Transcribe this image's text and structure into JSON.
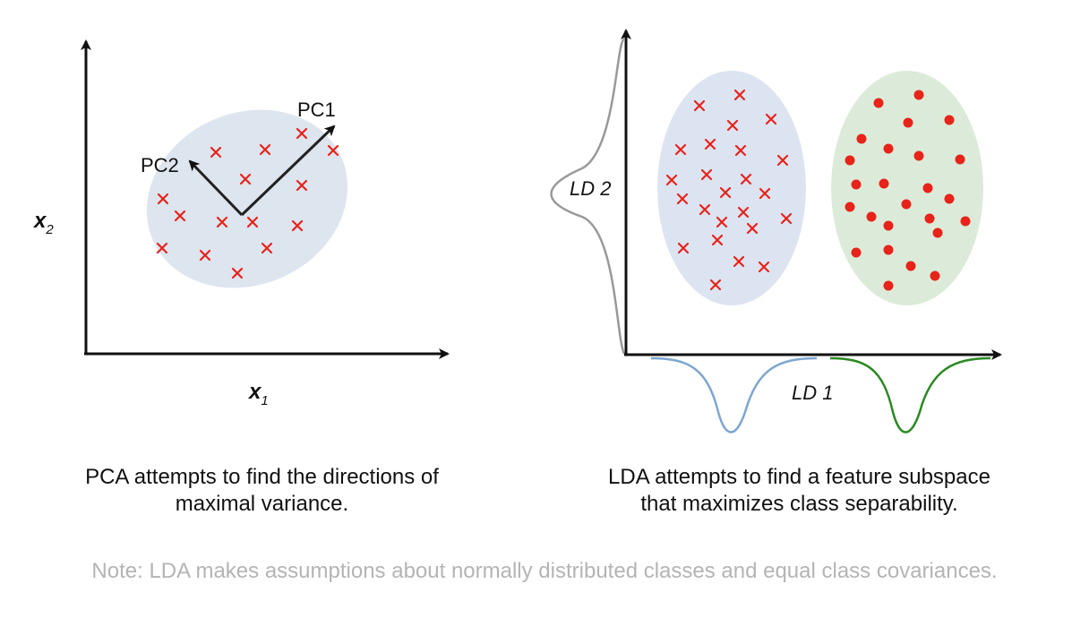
{
  "pca_panel": {
    "axis_x_label": "x",
    "axis_x_sub": "1",
    "axis_y_label": "x",
    "axis_y_sub": "2",
    "pc1_label": "PC1",
    "pc2_label": "PC2",
    "caption_line1": "PCA attempts to find the directions of",
    "caption_line2": "maximal variance."
  },
  "lda_panel": {
    "ld1_label": "LD 1",
    "ld2_label": "LD 2",
    "caption_line1": "LDA attempts to find a feature subspace",
    "caption_line2": "that maximizes class separability."
  },
  "footnote": "Note: LDA makes assumptions about normally distributed classes and equal class covariances.",
  "colors": {
    "marker": "#e8231a",
    "pca_ellipse": "#dde5ef",
    "class1_ellipse": "#dde4f1",
    "class2_ellipse": "#dcebd9",
    "ld1_curve_class1": "#7da6d0",
    "ld1_curve_class2": "#2a8a22",
    "ld2_curve": "#999999",
    "caption_text": "#111111",
    "footnote_text": "#b4b4b4"
  }
}
